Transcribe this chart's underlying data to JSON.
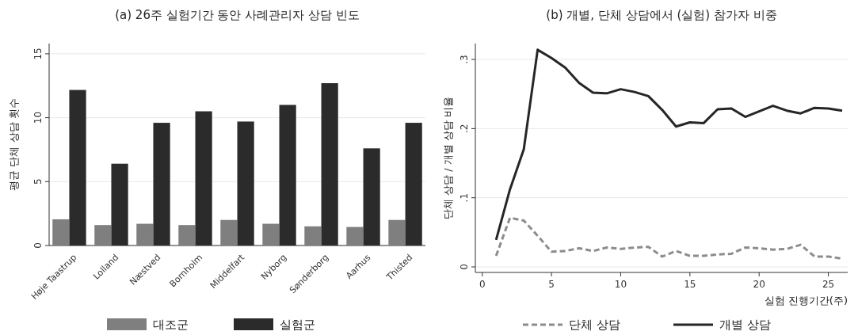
{
  "chart_data": [
    {
      "type": "bar",
      "title": "(a) 26주 실험기간 동안 사례관리자 상담 빈도",
      "ylabel": "평균 단체 상담 횟수",
      "categories": [
        "Høje Taastrup",
        "Lolland",
        "Næstved",
        "Bornholm",
        "Middelfart",
        "Nyborg",
        "Sønderborg",
        "Aarhus",
        "Thisted"
      ],
      "series": [
        {
          "name": "대조군",
          "color": "#7f7f7f",
          "values": [
            2.05,
            1.6,
            1.7,
            1.6,
            2.0,
            1.7,
            1.5,
            1.45,
            2.0
          ]
        },
        {
          "name": "실험군",
          "color": "#2b2b2b",
          "values": [
            12.17,
            6.4,
            9.6,
            10.5,
            9.7,
            11.0,
            12.7,
            7.6,
            9.6
          ]
        }
      ],
      "ylim": [
        0,
        15.8
      ],
      "yticks": [
        0,
        5,
        10,
        15
      ],
      "grid": "y",
      "legend": "bottom"
    },
    {
      "type": "line",
      "title": "(b) 개별, 단체 상담에서 (실험) 참가자 비중",
      "xlabel": "실험 진행기간(주)",
      "ylabel": "단체 상담 / 개별 상담 비율",
      "x": [
        1,
        2,
        3,
        4,
        5,
        6,
        7,
        8,
        9,
        10,
        11,
        12,
        13,
        14,
        15,
        16,
        17,
        18,
        19,
        20,
        21,
        22,
        23,
        24,
        25,
        26
      ],
      "series": [
        {
          "name": "단체 상담",
          "color": "#8c8c8c",
          "line_style": "dashed",
          "values": [
            0.016,
            0.071,
            0.067,
            0.045,
            0.022,
            0.023,
            0.027,
            0.023,
            0.028,
            0.026,
            0.028,
            0.029,
            0.015,
            0.023,
            0.016,
            0.016,
            0.018,
            0.019,
            0.028,
            0.027,
            0.025,
            0.026,
            0.032,
            0.015,
            0.015,
            0.012
          ]
        },
        {
          "name": "개별 상담",
          "color": "#262626",
          "line_style": "solid",
          "values": [
            0.039,
            0.112,
            0.17,
            0.314,
            0.302,
            0.288,
            0.266,
            0.252,
            0.251,
            0.257,
            0.253,
            0.247,
            0.227,
            0.203,
            0.209,
            0.208,
            0.228,
            0.229,
            0.217,
            0.225,
            0.233,
            0.226,
            0.222,
            0.23,
            0.229,
            0.226
          ]
        }
      ],
      "xlim": [
        -0.5,
        26.4
      ],
      "xticks": [
        0,
        5,
        10,
        15,
        20,
        25
      ],
      "ylim": [
        -0.008,
        0.323
      ],
      "yticks": [
        {
          "value": 0,
          "label": "0"
        },
        {
          "value": 0.1,
          "label": ".1"
        },
        {
          "value": 0.2,
          "label": ".2"
        },
        {
          "value": 0.3,
          "label": ".3"
        }
      ],
      "grid": "y",
      "legend": "bottom",
      "marker": "none"
    }
  ]
}
